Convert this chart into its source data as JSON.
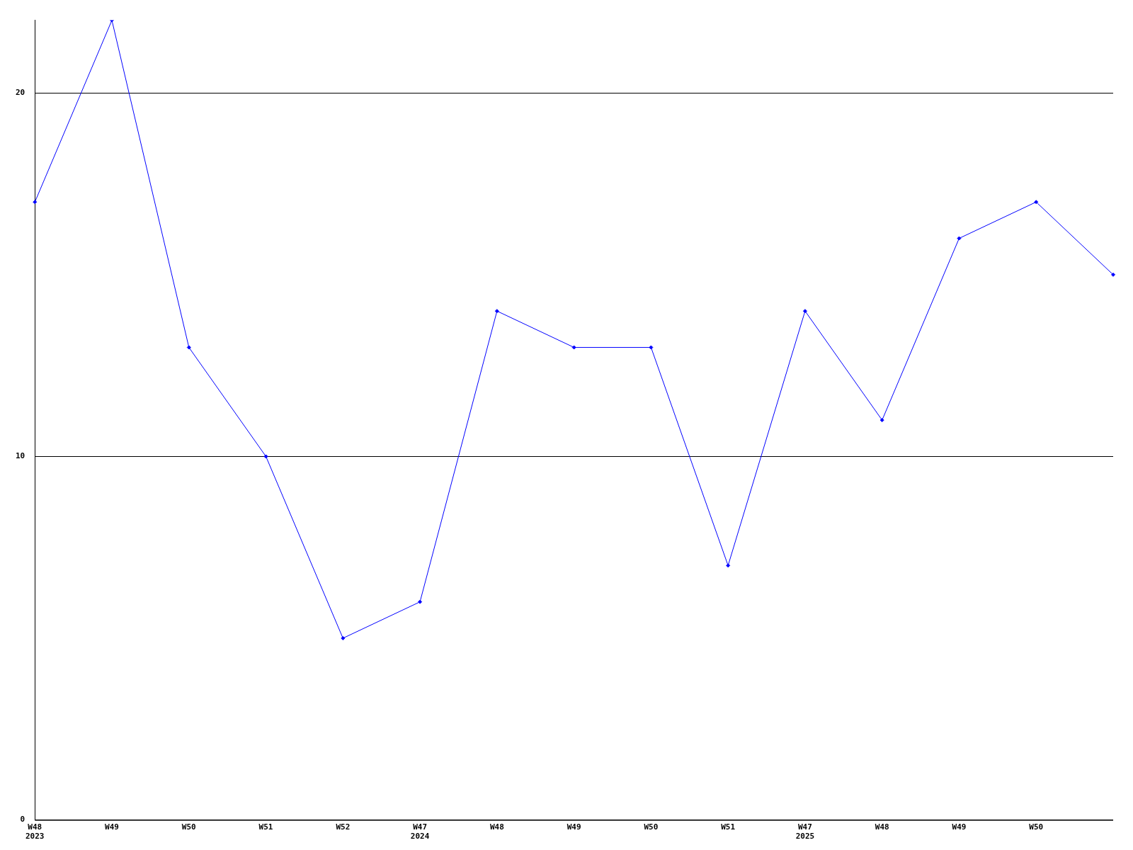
{
  "chart_data": {
    "type": "line",
    "categories": [
      "W48\n2023",
      "W49",
      "W50",
      "W51",
      "W52",
      "W47\n2024",
      "W48",
      "W49",
      "W50",
      "W51",
      "W47\n2025",
      "W48",
      "W49",
      "W50",
      null
    ],
    "values": [
      17,
      22,
      13,
      10,
      5,
      6,
      14,
      13,
      13,
      7,
      14,
      11,
      16,
      17,
      15
    ],
    "color": "#0000ff",
    "ylim": [
      0,
      22
    ],
    "yticks": [
      0,
      10,
      20
    ],
    "grid": "y",
    "marker": "diamond",
    "legend": false
  }
}
